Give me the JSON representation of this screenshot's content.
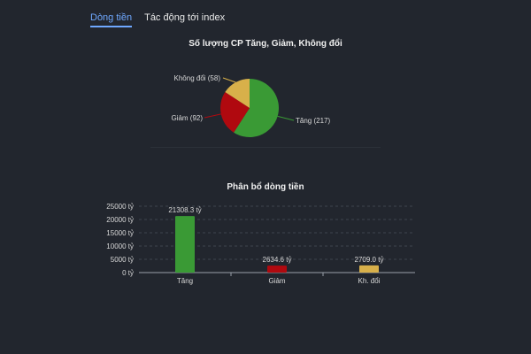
{
  "tabs": [
    {
      "label": "Dòng tiền",
      "active": true
    },
    {
      "label": "Tác động tới index",
      "active": false
    }
  ],
  "colors": {
    "up": "#3a9a35",
    "down": "#b0090f",
    "flat": "#d8b04a",
    "tab_accent": "#6fa8ff"
  },
  "chart_data": [
    {
      "type": "pie",
      "title": "Số lượng CP Tăng, Giảm, Không đổi",
      "slices": [
        {
          "label": "Tăng (217)",
          "value": 217,
          "color": "#3a9a35"
        },
        {
          "label": "Giảm (92)",
          "value": 92,
          "color": "#b0090f"
        },
        {
          "label": "Không đổi (58)",
          "value": 58,
          "color": "#d8b04a"
        }
      ]
    },
    {
      "type": "bar",
      "title": "Phân bổ dòng tiền",
      "categories": [
        "Tăng",
        "Giảm",
        "Kh. đổi"
      ],
      "values": [
        21308.3,
        2634.6,
        2709.0
      ],
      "data_labels": [
        "21308.3 tỷ",
        "2634.6 tỷ",
        "2709.0 tỷ"
      ],
      "colors": [
        "#3a9a35",
        "#b0090f",
        "#d8b04a"
      ],
      "yticks": [
        "0 tỷ",
        "5000 tỷ",
        "10000 tỷ",
        "15000 tỷ",
        "20000 tỷ",
        "25000 tỷ"
      ],
      "ylim": [
        0,
        25000
      ],
      "grid": true
    }
  ]
}
